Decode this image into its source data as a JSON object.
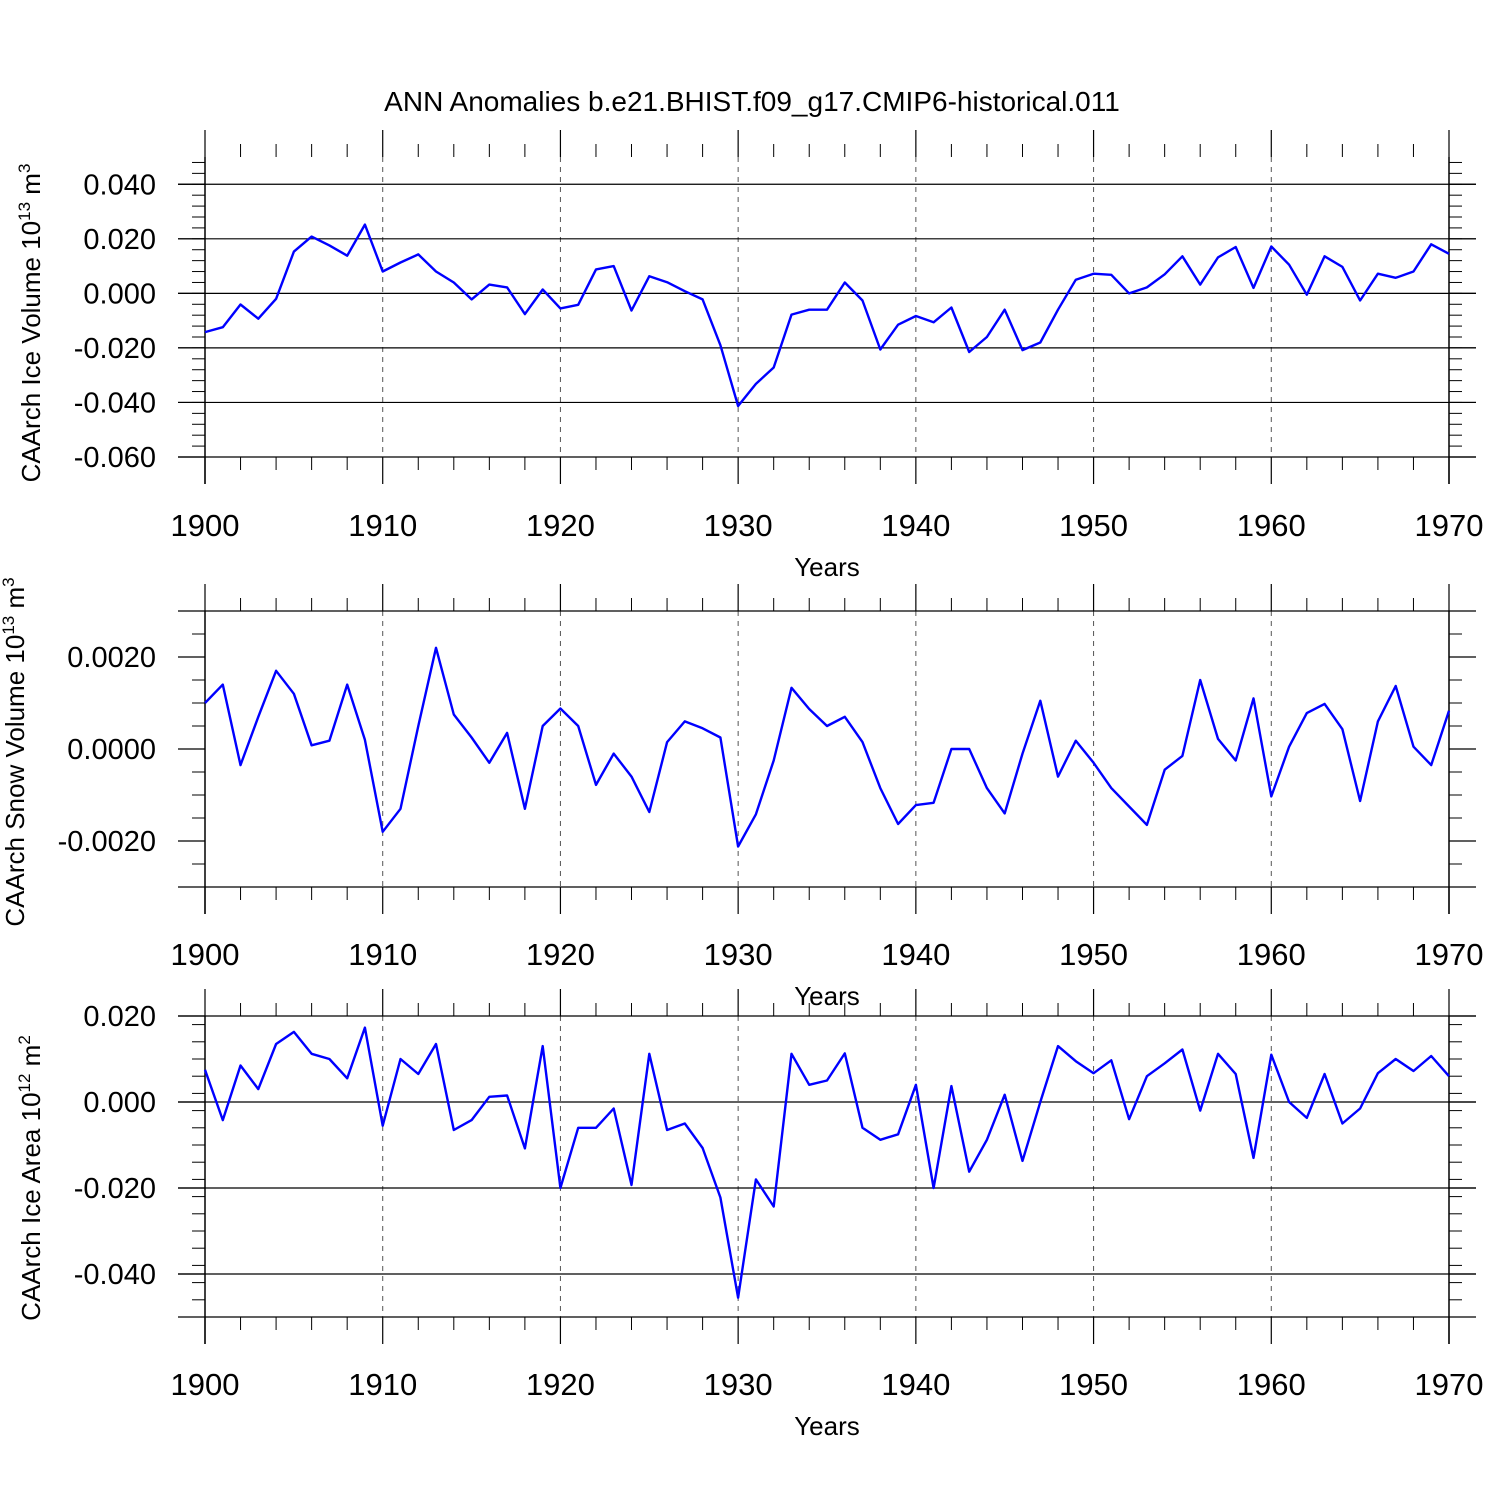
{
  "title": "ANN Anomalies b.e21.BHIST.f09_g17.CMIP6-historical.011",
  "chart_data": [
    {
      "type": "line",
      "ylabel": "CAArch Ice Volume",
      "yunit_base": "10",
      "yunit_exp": "13",
      "yunit_suffix": " m",
      "yunit_pow": "3",
      "xlabel": "Years",
      "xlim": [
        1900,
        1970
      ],
      "ylim": [
        -0.06,
        0.05
      ],
      "yticks": [
        -0.06,
        -0.04,
        -0.02,
        0.0,
        0.02,
        0.04
      ],
      "ytick_labels": [
        "-0.060",
        "-0.040",
        "-0.020",
        "0.000",
        "0.020",
        "0.040"
      ],
      "yminor_step": 0.004,
      "ref_lines": [
        -0.06,
        -0.04,
        -0.02,
        0.0,
        0.02,
        0.04
      ],
      "xticks": [
        1900,
        1910,
        1920,
        1930,
        1940,
        1950,
        1960,
        1970
      ],
      "xtick_labels": [
        "1900",
        "1910",
        "1920",
        "1930",
        "1940",
        "1950",
        "1960",
        "1970"
      ],
      "line_color": "#0000ff",
      "x": [
        1900,
        1901,
        1902,
        1903,
        1904,
        1905,
        1906,
        1907,
        1908,
        1909,
        1910,
        1911,
        1912,
        1913,
        1914,
        1915,
        1916,
        1917,
        1918,
        1919,
        1920,
        1921,
        1922,
        1923,
        1924,
        1925,
        1926,
        1927,
        1928,
        1929,
        1930,
        1931,
        1932,
        1933,
        1934,
        1935,
        1936,
        1937,
        1938,
        1939,
        1940,
        1941,
        1942,
        1943,
        1944,
        1945,
        1946,
        1947,
        1948,
        1949,
        1950,
        1951,
        1952,
        1953,
        1954,
        1955,
        1956,
        1957,
        1958,
        1959,
        1960,
        1961,
        1962,
        1963,
        1964,
        1965,
        1966,
        1967,
        1968,
        1969,
        1970
      ],
      "values": [
        -0.0142,
        -0.0124,
        -0.0041,
        -0.0093,
        -0.002,
        0.0153,
        0.0208,
        0.0176,
        0.0138,
        0.0252,
        0.008,
        0.0113,
        0.0143,
        0.008,
        0.004,
        -0.0022,
        0.0032,
        0.0022,
        -0.0076,
        0.0014,
        -0.0055,
        -0.0042,
        0.0088,
        0.01,
        -0.0063,
        0.0063,
        0.0041,
        0.0008,
        -0.0022,
        -0.019,
        -0.0413,
        -0.0332,
        -0.0272,
        -0.0078,
        -0.006,
        -0.006,
        0.004,
        -0.0026,
        -0.0206,
        -0.0115,
        -0.0083,
        -0.0106,
        -0.0052,
        -0.0215,
        -0.016,
        -0.006,
        -0.0208,
        -0.018,
        -0.006,
        0.005,
        0.0072,
        0.0068,
        0.0,
        0.0022,
        0.007,
        0.0136,
        0.0032,
        0.0132,
        0.017,
        0.002,
        0.0172,
        0.0105,
        -0.0005,
        0.0136,
        0.0097,
        -0.0026,
        0.0072,
        0.0057,
        0.008,
        0.018,
        0.0145
      ]
    },
    {
      "type": "line",
      "ylabel": "CAArch Snow Volume",
      "yunit_base": "10",
      "yunit_exp": "13",
      "yunit_suffix": " m",
      "yunit_pow": "3",
      "xlabel": "Years",
      "xlim": [
        1900,
        1970
      ],
      "ylim": [
        -0.003,
        0.003
      ],
      "yticks": [
        -0.002,
        0.0,
        0.002
      ],
      "ytick_labels": [
        "-0.0020",
        "0.0000",
        "0.0020"
      ],
      "yminor_step": 0.0005,
      "ref_lines": [
        -0.003,
        0.003
      ],
      "xticks": [
        1900,
        1910,
        1920,
        1930,
        1940,
        1950,
        1960,
        1970
      ],
      "xtick_labels": [
        "1900",
        "1910",
        "1920",
        "1930",
        "1940",
        "1950",
        "1960",
        "1970"
      ],
      "line_color": "#0000ff",
      "x": [
        1900,
        1901,
        1902,
        1903,
        1904,
        1905,
        1906,
        1907,
        1908,
        1909,
        1910,
        1911,
        1912,
        1913,
        1914,
        1915,
        1916,
        1917,
        1918,
        1919,
        1920,
        1921,
        1922,
        1923,
        1924,
        1925,
        1926,
        1927,
        1928,
        1929,
        1930,
        1931,
        1932,
        1933,
        1934,
        1935,
        1936,
        1937,
        1938,
        1939,
        1940,
        1941,
        1942,
        1943,
        1944,
        1945,
        1946,
        1947,
        1948,
        1949,
        1950,
        1951,
        1952,
        1953,
        1954,
        1955,
        1956,
        1957,
        1958,
        1959,
        1960,
        1961,
        1962,
        1963,
        1964,
        1965,
        1966,
        1967,
        1968,
        1969,
        1970
      ],
      "values": [
        0.001,
        0.0014,
        -0.00035,
        0.0007,
        0.0017,
        0.0012,
        8e-05,
        0.00018,
        0.0014,
        0.0002,
        -0.0018,
        -0.0013,
        0.0005,
        0.0022,
        0.00075,
        0.00025,
        -0.0003,
        0.00035,
        -0.0013,
        0.0005,
        0.00088,
        0.0005,
        -0.00078,
        -0.0001,
        -0.0006,
        -0.00137,
        0.00015,
        0.0006,
        0.00045,
        0.00025,
        -0.00212,
        -0.00142,
        -0.00025,
        0.00133,
        0.00087,
        0.0005,
        0.0007,
        0.00015,
        -0.00085,
        -0.00163,
        -0.00122,
        -0.00117,
        0.0,
        0.0,
        -0.00085,
        -0.0014,
        -0.0001,
        0.00105,
        -0.0006,
        0.00018,
        -0.0003,
        -0.00085,
        -0.00125,
        -0.00165,
        -0.00045,
        -0.00015,
        0.0015,
        0.00022,
        -0.00025,
        0.0011,
        -0.00103,
        5e-05,
        0.00078,
        0.00098,
        0.00043,
        -0.00113,
        0.0006,
        0.00137,
        5e-05,
        -0.00035,
        0.00083
      ]
    },
    {
      "type": "line",
      "ylabel": "CAArch Ice Area",
      "yunit_base": "10",
      "yunit_exp": "12",
      "yunit_suffix": " m",
      "yunit_pow": "2",
      "xlabel": "Years",
      "xlim": [
        1900,
        1970
      ],
      "ylim": [
        -0.05,
        0.02
      ],
      "yticks": [
        -0.04,
        -0.02,
        0.0,
        0.02
      ],
      "ytick_labels": [
        "-0.040",
        "-0.020",
        "0.000",
        "0.020"
      ],
      "yminor_step": 0.004,
      "ref_lines": [
        -0.05,
        -0.04,
        -0.02,
        0.0,
        0.02
      ],
      "xticks": [
        1900,
        1910,
        1920,
        1930,
        1940,
        1950,
        1960,
        1970
      ],
      "xtick_labels": [
        "1900",
        "1910",
        "1920",
        "1930",
        "1940",
        "1950",
        "1960",
        "1970"
      ],
      "line_color": "#0000ff",
      "x": [
        1900,
        1901,
        1902,
        1903,
        1904,
        1905,
        1906,
        1907,
        1908,
        1909,
        1910,
        1911,
        1912,
        1913,
        1914,
        1915,
        1916,
        1917,
        1918,
        1919,
        1920,
        1921,
        1922,
        1923,
        1924,
        1925,
        1926,
        1927,
        1928,
        1929,
        1930,
        1931,
        1932,
        1933,
        1934,
        1935,
        1936,
        1937,
        1938,
        1939,
        1940,
        1941,
        1942,
        1943,
        1944,
        1945,
        1946,
        1947,
        1948,
        1949,
        1950,
        1951,
        1952,
        1953,
        1954,
        1955,
        1956,
        1957,
        1958,
        1959,
        1960,
        1961,
        1962,
        1963,
        1964,
        1965,
        1966,
        1967,
        1968,
        1969,
        1970
      ],
      "values": [
        0.0075,
        -0.0042,
        0.0085,
        0.003,
        0.0135,
        0.0163,
        0.0112,
        0.01,
        0.0055,
        0.0173,
        -0.0055,
        0.01,
        0.0065,
        0.0135,
        -0.0065,
        -0.0042,
        0.0012,
        0.0015,
        -0.0108,
        0.013,
        -0.02,
        -0.006,
        -0.006,
        -0.0015,
        -0.0193,
        0.0112,
        -0.0065,
        -0.005,
        -0.0107,
        -0.0222,
        -0.0455,
        -0.018,
        -0.0243,
        0.0112,
        0.004,
        0.005,
        0.0113,
        -0.006,
        -0.0088,
        -0.0075,
        0.004,
        -0.02,
        0.0037,
        -0.0162,
        -0.0088,
        0.0017,
        -0.0137,
        0.0,
        0.013,
        0.0095,
        0.0067,
        0.0097,
        -0.004,
        0.006,
        0.009,
        0.0122,
        -0.002,
        0.0112,
        0.0065,
        -0.013,
        0.011,
        0.0,
        -0.0037,
        0.0065,
        -0.005,
        -0.0015,
        0.0067,
        0.01,
        0.0072,
        0.0107,
        0.006
      ]
    }
  ]
}
